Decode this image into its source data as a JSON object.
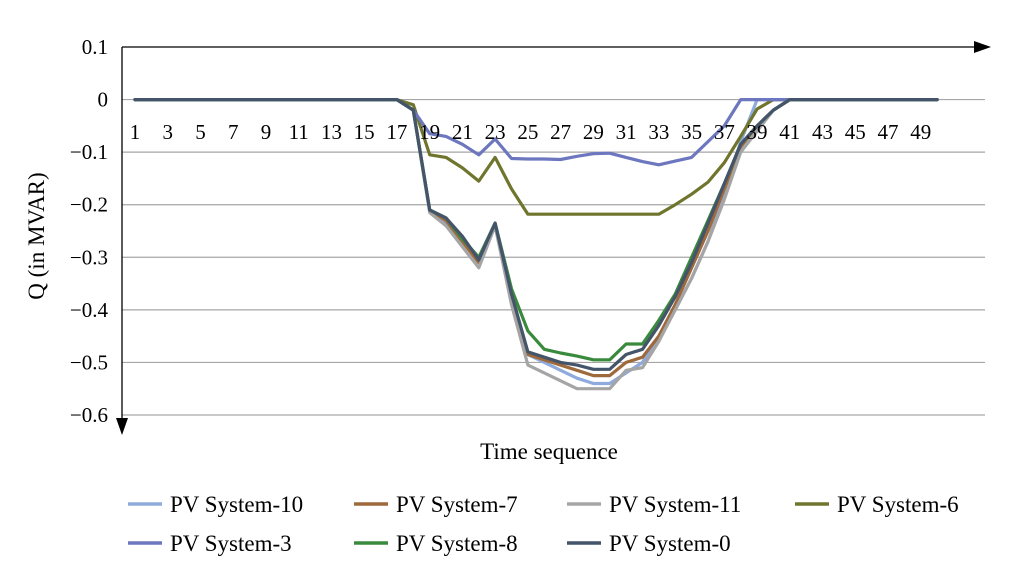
{
  "chart_data": {
    "type": "line",
    "xlabel": "Time sequence",
    "ylabel": "Q (in MVAR)",
    "ylim": [
      -0.6,
      0.1
    ],
    "yticks": [
      0.1,
      0,
      -0.1,
      -0.2,
      -0.3,
      -0.4,
      -0.5,
      -0.6
    ],
    "ytick_labels": [
      "0.1",
      "0",
      "−0.1",
      "−0.2",
      "−0.3",
      "−0.4",
      "−0.5",
      "−0.6"
    ],
    "x": [
      1,
      2,
      3,
      4,
      5,
      6,
      7,
      8,
      9,
      10,
      11,
      12,
      13,
      14,
      15,
      16,
      17,
      18,
      19,
      20,
      21,
      22,
      23,
      24,
      25,
      26,
      27,
      28,
      29,
      30,
      31,
      32,
      33,
      34,
      35,
      36,
      37,
      38,
      39,
      40,
      41,
      42,
      43,
      44,
      45,
      46,
      47,
      48,
      49,
      50
    ],
    "xtick_labels": [
      "1",
      "3",
      "5",
      "7",
      "9",
      "11",
      "13",
      "15",
      "17",
      "19",
      "21",
      "23",
      "25",
      "27",
      "29",
      "31",
      "33",
      "35",
      "37",
      "39",
      "41",
      "43",
      "45",
      "47",
      "49"
    ],
    "grid": true,
    "legend_position": "bottom",
    "series": [
      {
        "name": "PV System-10",
        "color": "#8faadc",
        "values": [
          0,
          0,
          0,
          0,
          0,
          0,
          0,
          0,
          0,
          0,
          0,
          0,
          0,
          0,
          0,
          0,
          0,
          -0.02,
          -0.21,
          -0.235,
          -0.27,
          -0.31,
          -0.24,
          -0.38,
          -0.485,
          -0.5,
          -0.515,
          -0.53,
          -0.54,
          -0.54,
          -0.52,
          -0.5,
          -0.45,
          -0.4,
          -0.34,
          -0.27,
          -0.18,
          -0.08,
          0,
          0,
          0,
          0,
          0,
          0,
          0,
          0,
          0,
          0,
          0,
          0
        ]
      },
      {
        "name": "PV System-7",
        "color": "#9e693b",
        "values": [
          0,
          0,
          0,
          0,
          0,
          0,
          0,
          0,
          0,
          0,
          0,
          0,
          0,
          0,
          0,
          0,
          0,
          -0.02,
          -0.21,
          -0.23,
          -0.27,
          -0.31,
          -0.24,
          -0.38,
          -0.485,
          -0.495,
          -0.505,
          -0.515,
          -0.525,
          -0.525,
          -0.5,
          -0.49,
          -0.45,
          -0.39,
          -0.32,
          -0.25,
          -0.17,
          -0.09,
          -0.05,
          -0.02,
          0,
          0,
          0,
          0,
          0,
          0,
          0,
          0,
          0,
          0
        ]
      },
      {
        "name": "PV System-11",
        "color": "#a5a5a5",
        "values": [
          0,
          0,
          0,
          0,
          0,
          0,
          0,
          0,
          0,
          0,
          0,
          0,
          0,
          0,
          0,
          0,
          0,
          -0.02,
          -0.215,
          -0.24,
          -0.28,
          -0.32,
          -0.24,
          -0.39,
          -0.505,
          -0.52,
          -0.535,
          -0.55,
          -0.55,
          -0.55,
          -0.515,
          -0.51,
          -0.46,
          -0.4,
          -0.34,
          -0.27,
          -0.19,
          -0.1,
          -0.06,
          -0.02,
          0,
          0,
          0,
          0,
          0,
          0,
          0,
          0,
          0,
          0
        ]
      },
      {
        "name": "PV System-6",
        "color": "#70752e",
        "values": [
          0,
          0,
          0,
          0,
          0,
          0,
          0,
          0,
          0,
          0,
          0,
          0,
          0,
          0,
          0,
          0,
          0,
          -0.01,
          -0.105,
          -0.11,
          -0.13,
          -0.155,
          -0.11,
          -0.17,
          -0.218,
          -0.218,
          -0.218,
          -0.218,
          -0.218,
          -0.218,
          -0.218,
          -0.218,
          -0.218,
          -0.2,
          -0.18,
          -0.157,
          -0.12,
          -0.07,
          -0.018,
          0,
          0,
          0,
          0,
          0,
          0,
          0,
          0,
          0,
          0,
          0
        ]
      },
      {
        "name": "PV System-3",
        "color": "#6d77bf",
        "values": [
          0,
          0,
          0,
          0,
          0,
          0,
          0,
          0,
          0,
          0,
          0,
          0,
          0,
          0,
          0,
          0,
          0,
          -0.02,
          -0.065,
          -0.07,
          -0.085,
          -0.105,
          -0.075,
          -0.112,
          -0.113,
          -0.113,
          -0.114,
          -0.108,
          -0.103,
          -0.102,
          -0.11,
          -0.118,
          -0.124,
          -0.117,
          -0.11,
          -0.08,
          -0.05,
          0,
          0,
          0,
          0,
          0,
          0,
          0,
          0,
          0,
          0,
          0,
          0,
          0
        ]
      },
      {
        "name": "PV System-8",
        "color": "#3a8a3e",
        "values": [
          0,
          0,
          0,
          0,
          0,
          0,
          0,
          0,
          0,
          0,
          0,
          0,
          0,
          0,
          0,
          0,
          0,
          -0.02,
          -0.21,
          -0.225,
          -0.265,
          -0.3,
          -0.235,
          -0.36,
          -0.44,
          -0.475,
          -0.482,
          -0.488,
          -0.495,
          -0.495,
          -0.465,
          -0.465,
          -0.42,
          -0.37,
          -0.3,
          -0.23,
          -0.16,
          -0.085,
          -0.05,
          -0.02,
          0,
          0,
          0,
          0,
          0,
          0,
          0,
          0,
          0,
          0
        ]
      },
      {
        "name": "PV System-0",
        "color": "#44546a",
        "values": [
          0,
          0,
          0,
          0,
          0,
          0,
          0,
          0,
          0,
          0,
          0,
          0,
          0,
          0,
          0,
          0,
          0,
          -0.02,
          -0.21,
          -0.225,
          -0.26,
          -0.305,
          -0.235,
          -0.37,
          -0.48,
          -0.49,
          -0.5,
          -0.505,
          -0.513,
          -0.513,
          -0.485,
          -0.475,
          -0.43,
          -0.375,
          -0.31,
          -0.235,
          -0.16,
          -0.085,
          -0.05,
          -0.02,
          0,
          0,
          0,
          0,
          0,
          0,
          0,
          0,
          0,
          0
        ]
      }
    ]
  }
}
